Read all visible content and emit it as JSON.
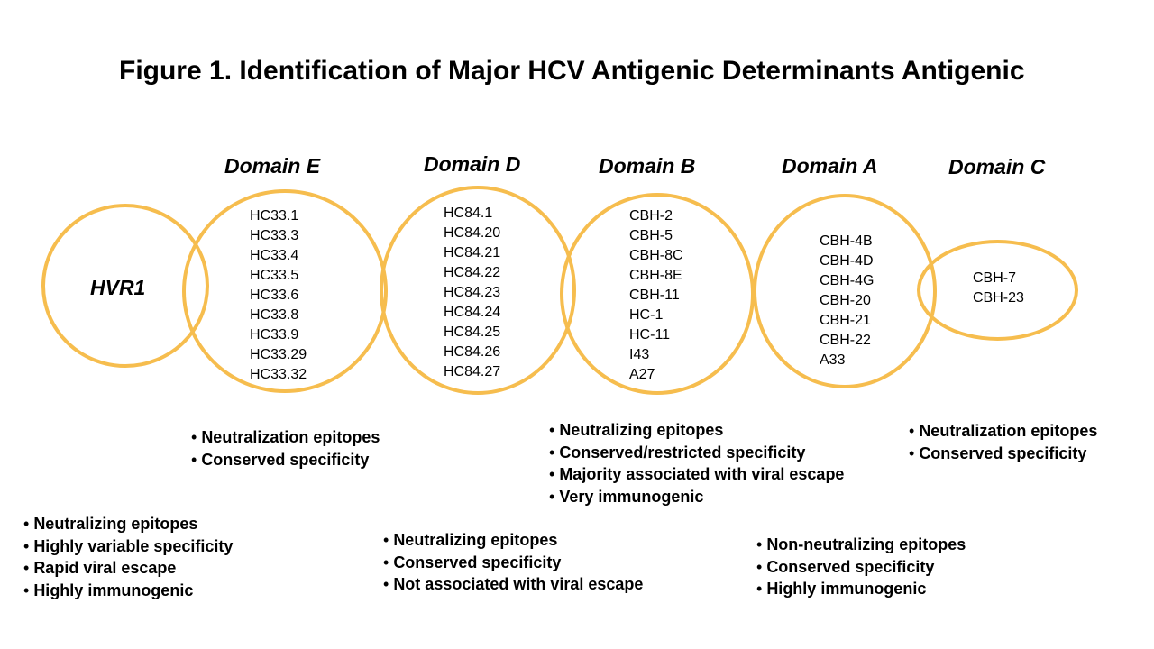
{
  "title": "Figure 1. Identification of Major HCV Antigenic Determinants Antigenic",
  "ring_color": "#F6BD4E",
  "hvr1": {
    "label": "HVR1",
    "features": [
      "Neutralizing epitopes",
      "Highly variable specificity",
      "Rapid viral escape",
      "Highly immunogenic"
    ]
  },
  "domains": [
    {
      "label": "Domain E",
      "antibodies": [
        "HC33.1",
        "HC33.3",
        "HC33.4",
        "HC33.5",
        "HC33.6",
        "HC33.8",
        "HC33.9",
        "HC33.29",
        "HC33.32"
      ],
      "features": [
        "Neutralization epitopes",
        "Conserved specificity"
      ]
    },
    {
      "label": "Domain D",
      "antibodies": [
        "HC84.1",
        "HC84.20",
        "HC84.21",
        "HC84.22",
        "HC84.23",
        "HC84.24",
        "HC84.25",
        "HC84.26",
        "HC84.27"
      ],
      "features": [
        "Neutralizing epitopes",
        "Conserved specificity",
        "Not associated with viral escape"
      ]
    },
    {
      "label": "Domain B",
      "antibodies": [
        "CBH-2",
        "CBH-5",
        "CBH-8C",
        "CBH-8E",
        "CBH-11",
        "HC-1",
        "HC-11",
        "I43",
        "A27"
      ],
      "features": [
        "Neutralizing epitopes",
        "Conserved/restricted specificity",
        "Majority associated with viral escape",
        "Very immunogenic"
      ]
    },
    {
      "label": "Domain A",
      "antibodies": [
        "CBH-4B",
        "CBH-4D",
        "CBH-4G",
        "CBH-20",
        "CBH-21",
        "CBH-22",
        "A33"
      ],
      "features": [
        "Non-neutralizing epitopes",
        "Conserved specificity",
        "Highly immunogenic"
      ]
    },
    {
      "label": "Domain C",
      "antibodies": [
        "CBH-7",
        "CBH-23"
      ],
      "features": [
        "Neutralization epitopes",
        "Conserved specificity"
      ]
    }
  ]
}
